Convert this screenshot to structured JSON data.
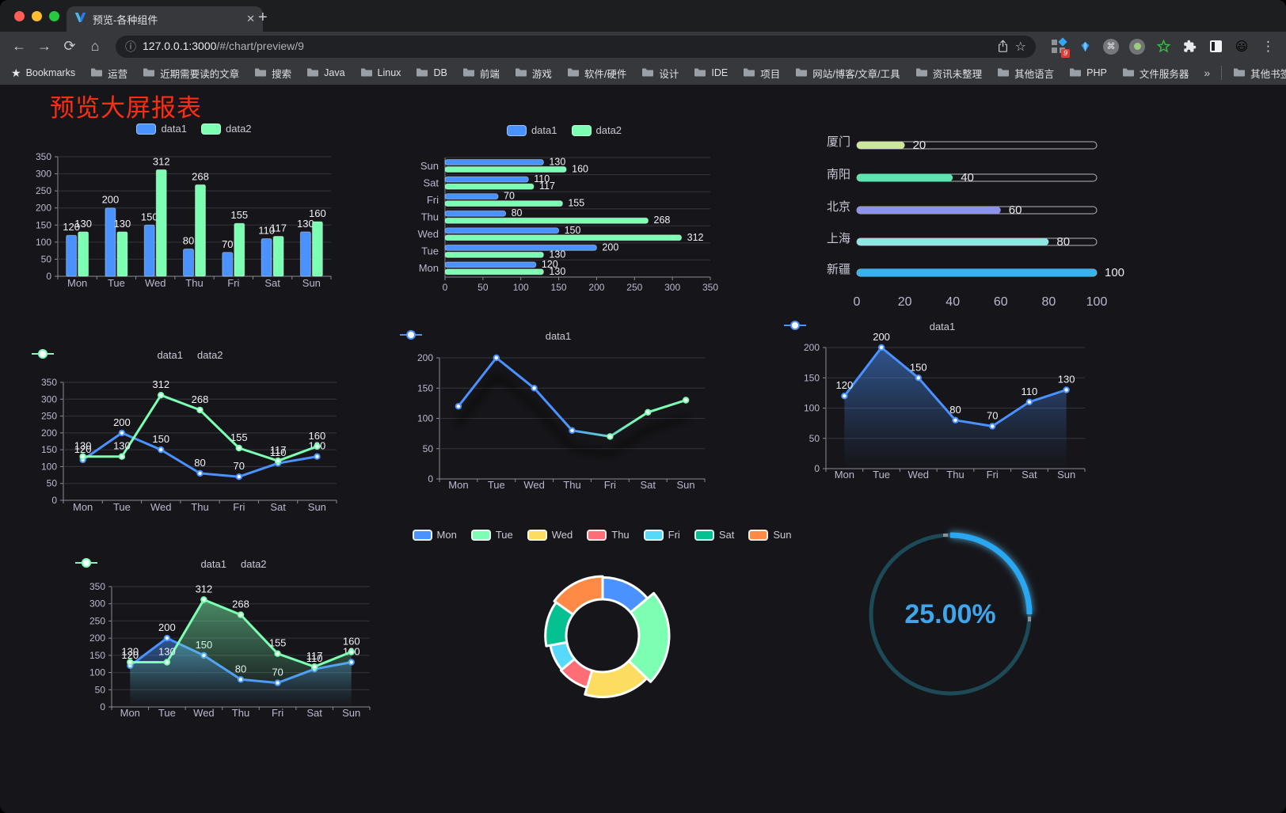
{
  "browser": {
    "tab_title": "预览-各种组件",
    "url_host": "127.0.0.1:3000",
    "url_path": "/#/chart/preview/9",
    "extension_badge": "9",
    "bookmarks_label": "Bookmarks",
    "bookmarks": [
      "运营",
      "近期需要读的文章",
      "搜索",
      "Java",
      "Linux",
      "DB",
      "前端",
      "游戏",
      "软件/硬件",
      "设计",
      "IDE",
      "项目",
      "网站/博客/文章/工具",
      "资讯未整理",
      "其他语言",
      "PHP",
      "文件服务器"
    ],
    "bookmarks_overflow": "»",
    "other_bookmarks": "其他书签"
  },
  "page": {
    "title": "预览大屏报表",
    "title_color": "#ff2d12",
    "background": "#16161a"
  },
  "chart_data": [
    {
      "id": "bar-vertical",
      "type": "bar",
      "categories": [
        "Mon",
        "Tue",
        "Wed",
        "Thu",
        "Fri",
        "Sat",
        "Sun"
      ],
      "series": [
        {
          "name": "data1",
          "color": "#4992ff",
          "values": [
            120,
            200,
            150,
            80,
            70,
            110,
            130
          ]
        },
        {
          "name": "data2",
          "color": "#7cffb2",
          "values": [
            130,
            130,
            312,
            268,
            155,
            117,
            160
          ]
        }
      ],
      "ylim": [
        0,
        350
      ],
      "ytick_step": 50,
      "labels": true,
      "legend_position": "top",
      "grid": true
    },
    {
      "id": "bar-horizontal",
      "type": "bar",
      "orientation": "horizontal",
      "categories": [
        "Mon",
        "Tue",
        "Wed",
        "Thu",
        "Fri",
        "Sat",
        "Sun"
      ],
      "series": [
        {
          "name": "data1",
          "color": "#4992ff",
          "values": [
            120,
            200,
            150,
            80,
            70,
            110,
            130
          ]
        },
        {
          "name": "data2",
          "color": "#7cffb2",
          "values": [
            130,
            130,
            312,
            268,
            155,
            117,
            160
          ]
        }
      ],
      "xlim": [
        0,
        350
      ],
      "xtick_step": 50,
      "labels": true,
      "legend_position": "top",
      "grid": true
    },
    {
      "id": "progress-bars",
      "type": "bar",
      "orientation": "horizontal-progress",
      "xlim": [
        0,
        100
      ],
      "xticks": [
        0,
        20,
        40,
        60,
        80,
        100
      ],
      "items": [
        {
          "label": "厦门",
          "value": 20,
          "color": "#cde79a"
        },
        {
          "label": "南阳",
          "value": 40,
          "color": "#5fe3b1"
        },
        {
          "label": "北京",
          "value": 60,
          "color": "#8d93e8"
        },
        {
          "label": "上海",
          "value": 80,
          "color": "#8fe6e2"
        },
        {
          "label": "新疆",
          "value": 100,
          "color": "#3ab4e8"
        }
      ]
    },
    {
      "id": "line-two-series",
      "type": "line",
      "categories": [
        "Mon",
        "Tue",
        "Wed",
        "Thu",
        "Fri",
        "Sat",
        "Sun"
      ],
      "series": [
        {
          "name": "data1",
          "color": "#4992ff",
          "values": [
            120,
            200,
            150,
            80,
            70,
            110,
            130
          ]
        },
        {
          "name": "data2",
          "color": "#7cffb2",
          "values": [
            130,
            130,
            312,
            268,
            155,
            117,
            160
          ]
        }
      ],
      "ylim": [
        0,
        350
      ],
      "ytick_step": 50,
      "labels": true,
      "legend_position": "top"
    },
    {
      "id": "line-gradient",
      "type": "line",
      "categories": [
        "Mon",
        "Tue",
        "Wed",
        "Thu",
        "Fri",
        "Sat",
        "Sun"
      ],
      "series": [
        {
          "name": "data1",
          "color": "#4992ff",
          "color_end": "#7cffb2",
          "values": [
            120,
            200,
            150,
            80,
            70,
            110,
            130
          ]
        }
      ],
      "ylim": [
        0,
        200
      ],
      "ytick_step": 50,
      "labels": false,
      "shadow": true,
      "legend_position": "top"
    },
    {
      "id": "line-area-single",
      "type": "area",
      "categories": [
        "Mon",
        "Tue",
        "Wed",
        "Thu",
        "Fri",
        "Sat",
        "Sun"
      ],
      "series": [
        {
          "name": "data1",
          "color": "#4992ff",
          "area": true,
          "values": [
            120,
            200,
            150,
            80,
            70,
            110,
            130
          ]
        }
      ],
      "ylim": [
        0,
        200
      ],
      "ytick_step": 50,
      "labels": true,
      "legend_position": "top"
    },
    {
      "id": "line-area-two-series",
      "type": "area",
      "categories": [
        "Mon",
        "Tue",
        "Wed",
        "Thu",
        "Fri",
        "Sat",
        "Sun"
      ],
      "series": [
        {
          "name": "data1",
          "color": "#4992ff",
          "area": true,
          "values": [
            120,
            200,
            150,
            80,
            70,
            110,
            130
          ]
        },
        {
          "name": "data2",
          "color": "#7cffb2",
          "area": true,
          "values": [
            130,
            130,
            312,
            268,
            155,
            117,
            160
          ]
        }
      ],
      "ylim": [
        0,
        350
      ],
      "ytick_step": 50,
      "labels": true,
      "legend_position": "top"
    },
    {
      "id": "rose-pie",
      "type": "pie",
      "rose": true,
      "items": [
        {
          "name": "Mon",
          "value": 120,
          "color": "#4992ff"
        },
        {
          "name": "Tue",
          "value": 200,
          "color": "#7cffb2"
        },
        {
          "name": "Wed",
          "value": 150,
          "color": "#fddd60"
        },
        {
          "name": "Thu",
          "value": 80,
          "color": "#ff6e76"
        },
        {
          "name": "Fri",
          "value": 70,
          "color": "#58d9f9"
        },
        {
          "name": "Sat",
          "value": 110,
          "color": "#05c091"
        },
        {
          "name": "Sun",
          "value": 130,
          "color": "#ff8a45"
        }
      ],
      "legend_position": "top"
    },
    {
      "id": "gauge-ring",
      "type": "gauge",
      "value": 25,
      "max": 100,
      "display": "25.00%",
      "color": "#2aa7f2",
      "track_color": "#1d4a57",
      "text_color": "#3da6ec"
    }
  ]
}
